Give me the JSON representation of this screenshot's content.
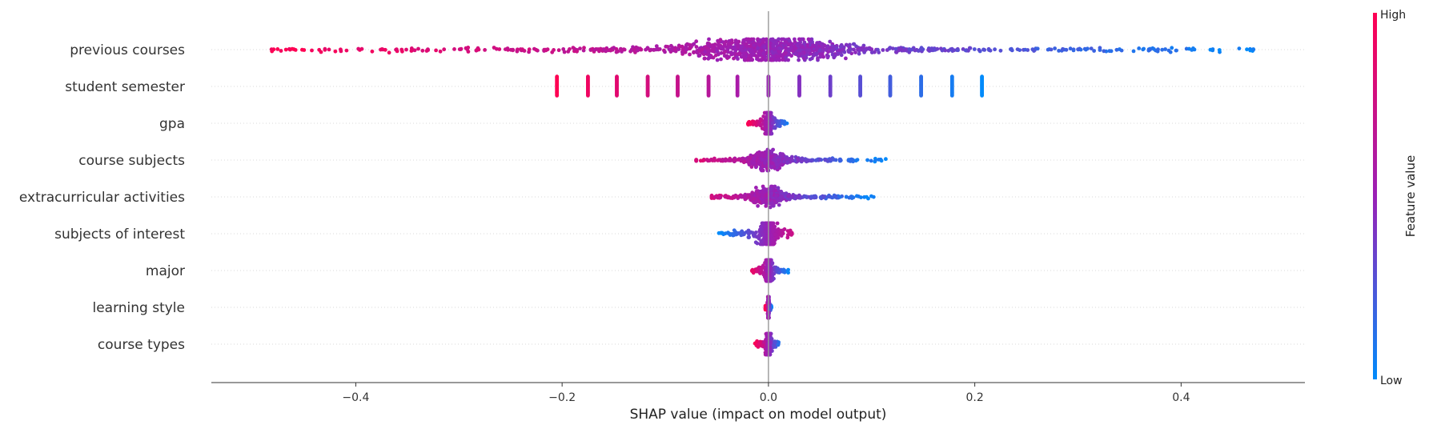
{
  "chart_data": {
    "type": "scatter",
    "subtype": "shap-beeswarm",
    "title": "",
    "xlabel": "SHAP value (impact on model output)",
    "ylabel": "",
    "xlim": [
      -0.54,
      0.52
    ],
    "xticks": [
      -0.4,
      -0.2,
      0.0,
      0.2,
      0.4
    ],
    "xtick_labels": [
      "−0.4",
      "−0.2",
      "0.0",
      "0.2",
      "0.4"
    ],
    "grid": false,
    "zero_line": true,
    "colorbar": {
      "title": "Feature value",
      "high_label": "High",
      "low_label": "Low",
      "high_color": "#ff0052",
      "low_color": "#008bfb",
      "mid_color": "#9a20b6"
    },
    "features": [
      {
        "name": "previous courses",
        "x_min": -0.49,
        "x_max": 0.47,
        "high_side": "negative",
        "spread": "continuous",
        "density_center": 0.0
      },
      {
        "name": "student semester",
        "x_min": -0.205,
        "x_max": 0.207,
        "high_side": "negative",
        "spread": "discrete",
        "levels": [
          -0.205,
          -0.175,
          -0.147,
          -0.117,
          -0.088,
          -0.058,
          -0.03,
          0.0,
          0.03,
          0.06,
          0.089,
          0.118,
          0.148,
          0.178,
          0.207
        ]
      },
      {
        "name": "gpa",
        "x_min": -0.02,
        "x_max": 0.018,
        "high_side": "negative",
        "spread": "tight"
      },
      {
        "name": "course subjects",
        "x_min": -0.07,
        "x_max": 0.115,
        "high_side": "negative",
        "spread": "continuous"
      },
      {
        "name": "extracurricular activities",
        "x_min": -0.055,
        "x_max": 0.102,
        "high_side": "negative",
        "spread": "continuous"
      },
      {
        "name": "subjects of interest",
        "x_min": -0.048,
        "x_max": 0.023,
        "high_side": "positive",
        "spread": "tight"
      },
      {
        "name": "major",
        "x_min": -0.016,
        "x_max": 0.02,
        "high_side": "negative",
        "spread": "tight"
      },
      {
        "name": "learning style",
        "x_min": -0.003,
        "x_max": 0.003,
        "high_side": "negative",
        "spread": "tight"
      },
      {
        "name": "course types",
        "x_min": -0.013,
        "x_max": 0.01,
        "high_side": "negative",
        "spread": "tight"
      }
    ]
  }
}
